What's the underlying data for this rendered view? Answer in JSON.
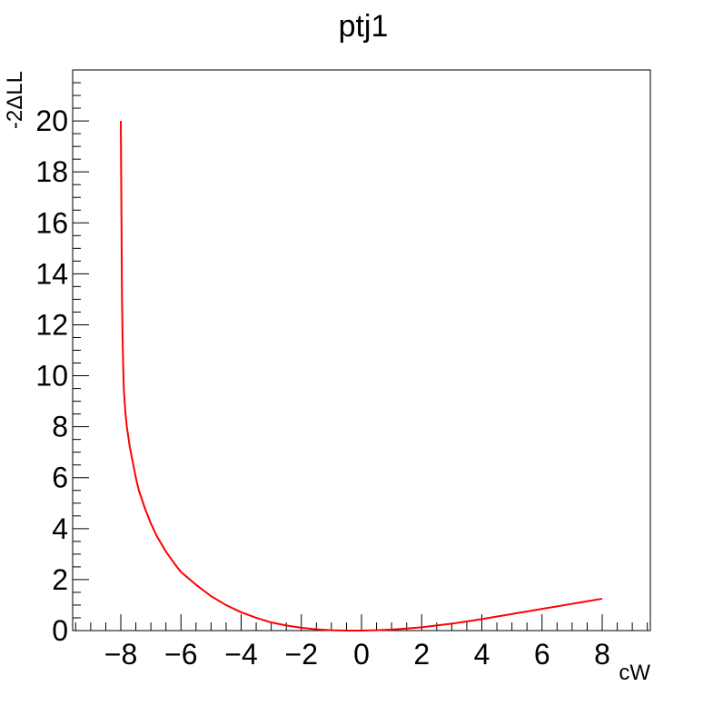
{
  "chart_data": {
    "type": "line",
    "title": "ptj1",
    "xlabel": "cW",
    "ylabel": "-2ΔLL",
    "xlim": [
      -9.6,
      9.6
    ],
    "ylim": [
      0,
      22
    ],
    "grid": false,
    "legend": "none",
    "xticks": [
      -8,
      -6,
      -4,
      -2,
      0,
      2,
      4,
      6,
      8
    ],
    "xtick_labels": [
      "−8",
      "−6",
      "−4",
      "−2",
      "0",
      "2",
      "4",
      "6",
      "8"
    ],
    "yticks": [
      0,
      2,
      4,
      6,
      8,
      10,
      12,
      14,
      16,
      18,
      20
    ],
    "ytick_labels": [
      "0",
      "2",
      "4",
      "6",
      "8",
      "10",
      "12",
      "14",
      "16",
      "18",
      "20"
    ],
    "series": [
      {
        "color": "#ff0000",
        "x": [
          -8.0,
          -7.98,
          -7.96,
          -7.94,
          -7.92,
          -7.9,
          -7.85,
          -7.8,
          -7.7,
          -7.6,
          -7.5,
          -7.4,
          -7.2,
          -7.0,
          -6.8,
          -6.5,
          -6.2,
          -6.0,
          -5.5,
          -5.0,
          -4.5,
          -4.0,
          -3.5,
          -3.0,
          -2.5,
          -2.0,
          -1.5,
          -1.0,
          -0.5,
          0.0,
          0.5,
          1.0,
          1.5,
          2.0,
          3.0,
          4.0,
          5.0,
          6.0,
          7.0,
          8.0
        ],
        "y": [
          20.0,
          16.5,
          13.0,
          11.5,
          10.3,
          9.5,
          8.6,
          8.0,
          7.2,
          6.6,
          6.0,
          5.5,
          4.8,
          4.2,
          3.7,
          3.1,
          2.6,
          2.3,
          1.8,
          1.35,
          1.0,
          0.72,
          0.5,
          0.32,
          0.2,
          0.11,
          0.05,
          0.015,
          0.0,
          0.0,
          0.015,
          0.04,
          0.08,
          0.13,
          0.27,
          0.45,
          0.65,
          0.85,
          1.05,
          1.25
        ]
      }
    ]
  }
}
